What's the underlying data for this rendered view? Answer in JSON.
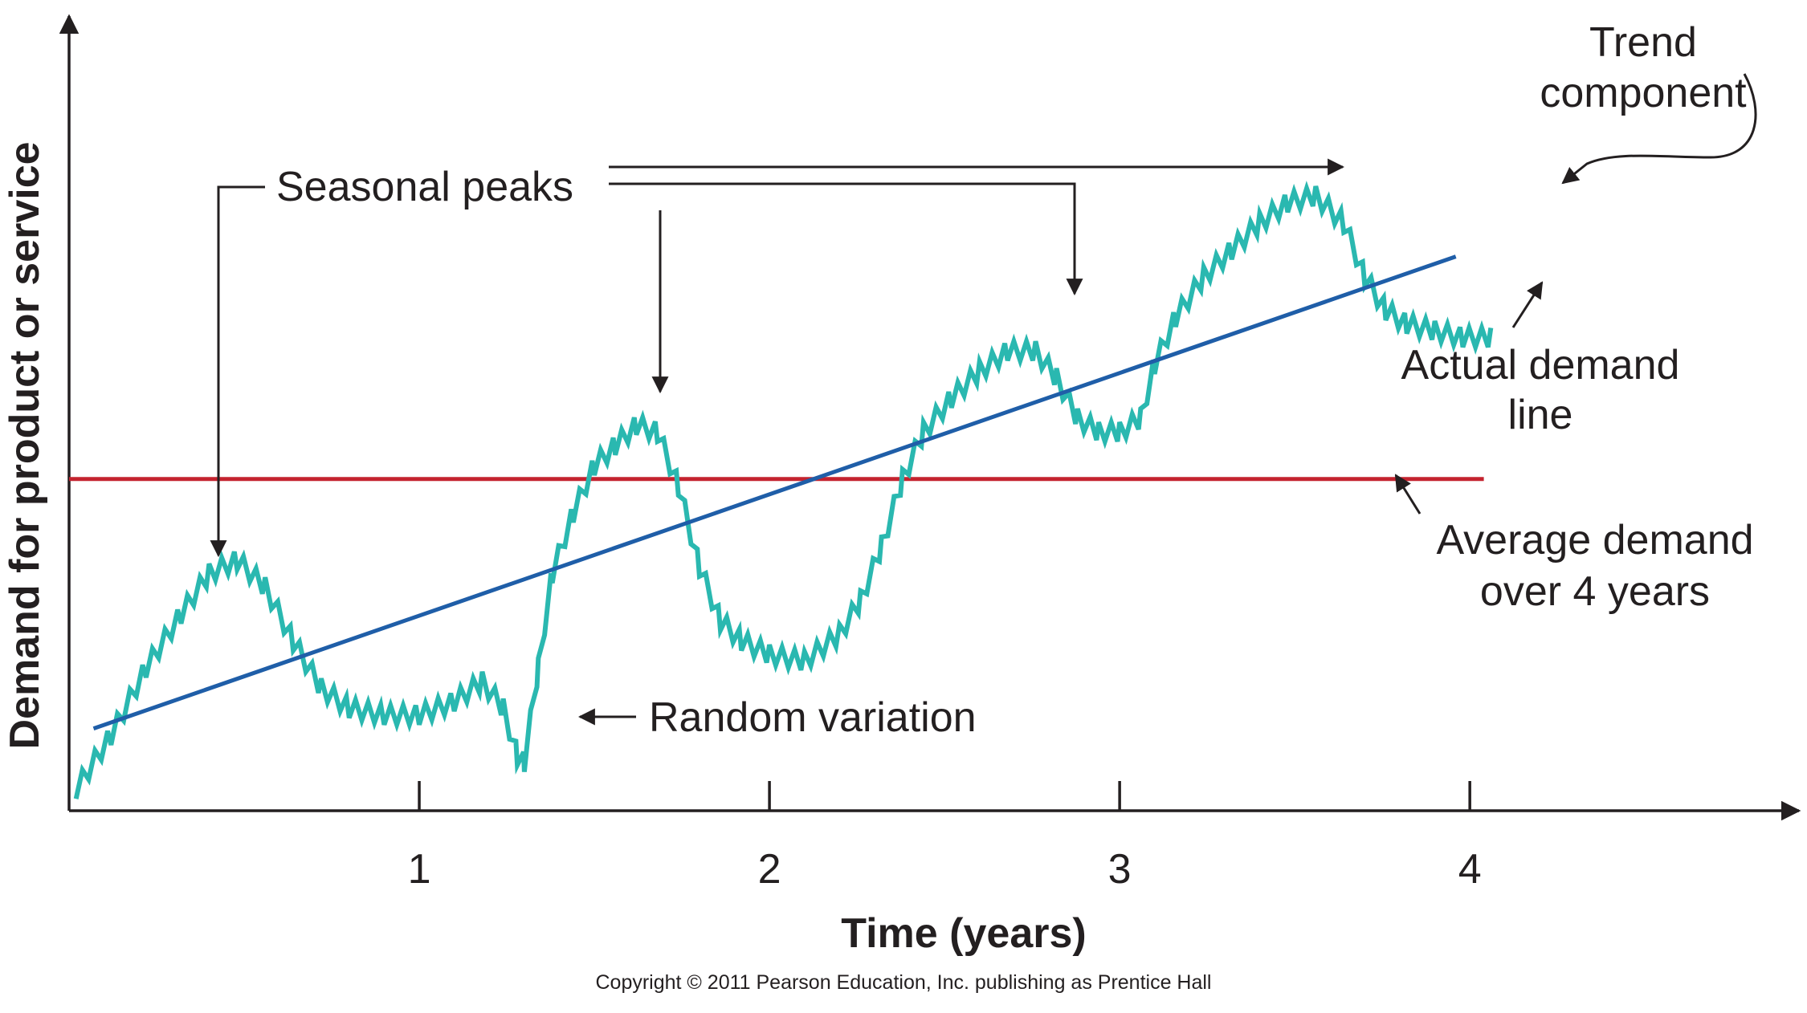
{
  "chart_data": {
    "type": "line",
    "title": "",
    "xlabel": "Time (years)",
    "ylabel": "Demand for product or service",
    "xlim": [
      0.0,
      4.55
    ],
    "ylim": [
      0,
      100
    ],
    "xticks": [
      1,
      2,
      3,
      4
    ],
    "grid": false,
    "legend": "none",
    "series": [
      {
        "name": "Actual demand line",
        "style": "zigzag",
        "color": "#2ab8b0",
        "x": [
          0.02,
          0.12,
          0.22,
          0.32,
          0.4,
          0.48,
          0.56,
          0.64,
          0.72,
          0.8,
          0.9,
          1.0,
          1.1,
          1.18,
          1.24,
          1.28,
          1.3,
          1.34,
          1.38,
          1.44,
          1.5,
          1.56,
          1.62,
          1.68,
          1.74,
          1.8,
          1.86,
          1.92,
          2.0,
          2.1,
          2.2,
          2.26,
          2.32,
          2.38,
          2.44,
          2.52,
          2.6,
          2.68,
          2.76,
          2.82,
          2.88,
          2.94,
          3.0,
          3.06,
          3.1,
          3.16,
          3.24,
          3.32,
          3.4,
          3.48,
          3.56,
          3.64,
          3.7,
          3.76,
          3.82,
          3.9,
          3.98,
          4.06
        ],
        "values": [
          2,
          10,
          20,
          28,
          34,
          36,
          32,
          24,
          17,
          14,
          13,
          13,
          15,
          18,
          14,
          7,
          6,
          20,
          34,
          43,
          50,
          53,
          56,
          55,
          47,
          35,
          27,
          24,
          22,
          21,
          25,
          30,
          38,
          48,
          55,
          60,
          64,
          67,
          67,
          63,
          57,
          55,
          55,
          57,
          65,
          72,
          78,
          82,
          86,
          89,
          90,
          86,
          78,
          73,
          71,
          70,
          69,
          69
        ]
      },
      {
        "name": "Trend component",
        "style": "straight",
        "color": "#1f5ea8",
        "x": [
          0.07,
          3.96
        ],
        "values": [
          11,
          81
        ]
      },
      {
        "name": "Average demand over 4 years",
        "style": "straight",
        "color": "#c4232f",
        "x": [
          0.0,
          4.04
        ],
        "values": [
          48,
          48
        ]
      }
    ],
    "annotations": [
      {
        "text": "Seasonal peaks"
      },
      {
        "text": "Random variation"
      },
      {
        "lines": [
          "Trend",
          "component"
        ]
      },
      {
        "lines": [
          "Actual demand",
          "line"
        ]
      },
      {
        "lines": [
          "Average demand",
          "over 4 years"
        ]
      }
    ]
  },
  "footer": {
    "copyright": "Copyright © 2011 Pearson Education, Inc. publishing as Prentice Hall"
  }
}
